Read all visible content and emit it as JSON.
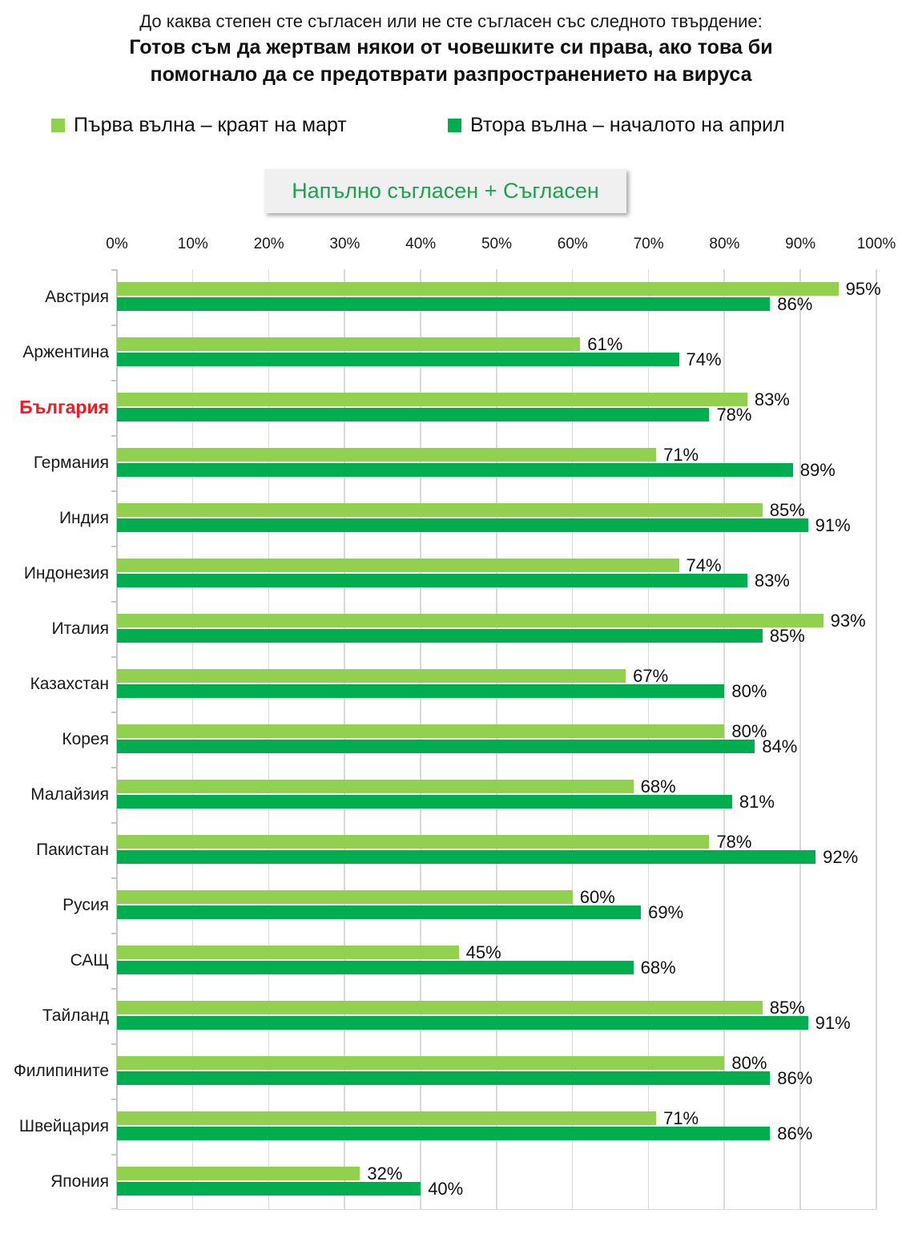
{
  "title": {
    "question": "До каква степен сте съгласен или не сте съгласен със следното твърдение:",
    "statement_line1": "Готов съм да жертвам някои от човешките си права, ако това би",
    "statement_line2": "помогнало да се предотврати разпространението на вируса"
  },
  "legend": [
    {
      "label": "Първа вълна – краят на март",
      "color": "#92D050"
    },
    {
      "label": "Втора вълна – началото на април",
      "color": "#00AE50"
    }
  ],
  "highlight_box": {
    "label": "Напълно съгласен + Съгласен",
    "text_color": "#1CA350",
    "background": "#F0F0F0"
  },
  "chart_data": {
    "type": "bar",
    "orientation": "horizontal",
    "title": "Напълно съгласен + Съгласен",
    "xlabel": "",
    "ylabel": "",
    "xlim": [
      0,
      100
    ],
    "x_ticks": [
      "0%",
      "10%",
      "20%",
      "30%",
      "40%",
      "50%",
      "60%",
      "70%",
      "80%",
      "90%",
      "100%"
    ],
    "grid": true,
    "legend_position": "top",
    "categories": [
      "Австрия",
      "Аржентина",
      "България",
      "Германия",
      "Индия",
      "Индонезия",
      "Италия",
      "Казахстан",
      "Корея",
      "Малайзия",
      "Пакистан",
      "Русия",
      "САЩ",
      "Тайланд",
      "Филипините",
      "Швейцария",
      "Япония"
    ],
    "series": [
      {
        "name": "Първа вълна – краят на март",
        "color": "#92D050",
        "values": [
          95,
          61,
          83,
          71,
          85,
          74,
          93,
          67,
          80,
          68,
          78,
          60,
          45,
          85,
          80,
          71,
          32
        ]
      },
      {
        "name": "Втора вълна – началото на април",
        "color": "#00AE50",
        "values": [
          86,
          74,
          78,
          89,
          91,
          83,
          85,
          80,
          84,
          81,
          92,
          69,
          68,
          91,
          86,
          86,
          40
        ]
      }
    ],
    "value_label_suffix": "%",
    "highlighted_category": "България",
    "highlight_color": "#ED1C24"
  }
}
